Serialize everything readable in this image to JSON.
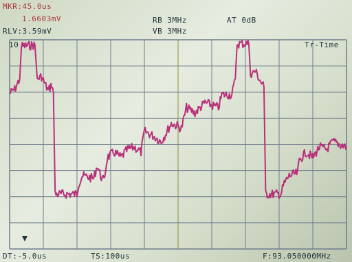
{
  "instrument": {
    "marker_time": "MKR:45.0us",
    "marker_level": "1.6603mV",
    "ref_level": "RLV:3.59mV",
    "rbw": "RB 3MHz",
    "vbw": "VB 3MHz",
    "attenuation": "AT 0dB",
    "scale": "10",
    "mode": "Tr-Time",
    "delta_time": "DT:-5.0us",
    "time_span": "TS:100us",
    "frequency": "F:93.050000MHz"
  },
  "colors": {
    "trace": "#b8307a",
    "grid": "#6f7d8c",
    "text": "#22333a",
    "marker_text": "#a83a3a"
  },
  "trace": {
    "note": "time-domain envelope in screen divisions (0=top, 8=bottom), time in divisions 0..10",
    "points": [
      [
        0.0,
        2.05
      ],
      [
        0.15,
        1.9
      ],
      [
        0.3,
        1.5
      ],
      [
        0.35,
        0.25
      ],
      [
        0.75,
        0.2
      ],
      [
        0.82,
        1.5
      ],
      [
        0.95,
        1.4
      ],
      [
        1.05,
        1.7
      ],
      [
        1.15,
        1.95
      ],
      [
        1.25,
        1.7
      ],
      [
        1.3,
        2.0
      ],
      [
        1.35,
        5.9
      ],
      [
        2.0,
        5.9
      ],
      [
        2.05,
        5.5
      ],
      [
        2.15,
        5.2
      ],
      [
        2.5,
        5.3
      ],
      [
        2.6,
        4.8
      ],
      [
        2.7,
        5.2
      ],
      [
        2.8,
        5.4
      ],
      [
        2.9,
        4.5
      ],
      [
        3.1,
        4.3
      ],
      [
        3.3,
        4.5
      ],
      [
        3.5,
        4.2
      ],
      [
        3.7,
        4.1
      ],
      [
        3.9,
        4.3
      ],
      [
        4.0,
        3.5
      ],
      [
        4.3,
        3.7
      ],
      [
        4.5,
        3.9
      ],
      [
        4.8,
        3.2
      ],
      [
        5.0,
        3.3
      ],
      [
        5.1,
        3.4
      ],
      [
        5.25,
        2.6
      ],
      [
        5.5,
        2.8
      ],
      [
        5.8,
        2.4
      ],
      [
        6.0,
        2.5
      ],
      [
        6.2,
        2.6
      ],
      [
        6.3,
        2.1
      ],
      [
        6.6,
        2.1
      ],
      [
        6.7,
        1.5
      ],
      [
        6.75,
        0.15
      ],
      [
        7.1,
        0.15
      ],
      [
        7.15,
        1.3
      ],
      [
        7.3,
        1.2
      ],
      [
        7.45,
        1.6
      ],
      [
        7.55,
        1.8
      ],
      [
        7.6,
        5.9
      ],
      [
        8.05,
        5.9
      ],
      [
        8.15,
        5.5
      ],
      [
        8.3,
        5.2
      ],
      [
        8.55,
        5.1
      ],
      [
        8.6,
        4.6
      ],
      [
        8.8,
        4.3
      ],
      [
        9.0,
        4.5
      ],
      [
        9.2,
        4.1
      ],
      [
        9.4,
        4.2
      ],
      [
        9.6,
        3.9
      ],
      [
        10.0,
        4.1
      ]
    ]
  }
}
